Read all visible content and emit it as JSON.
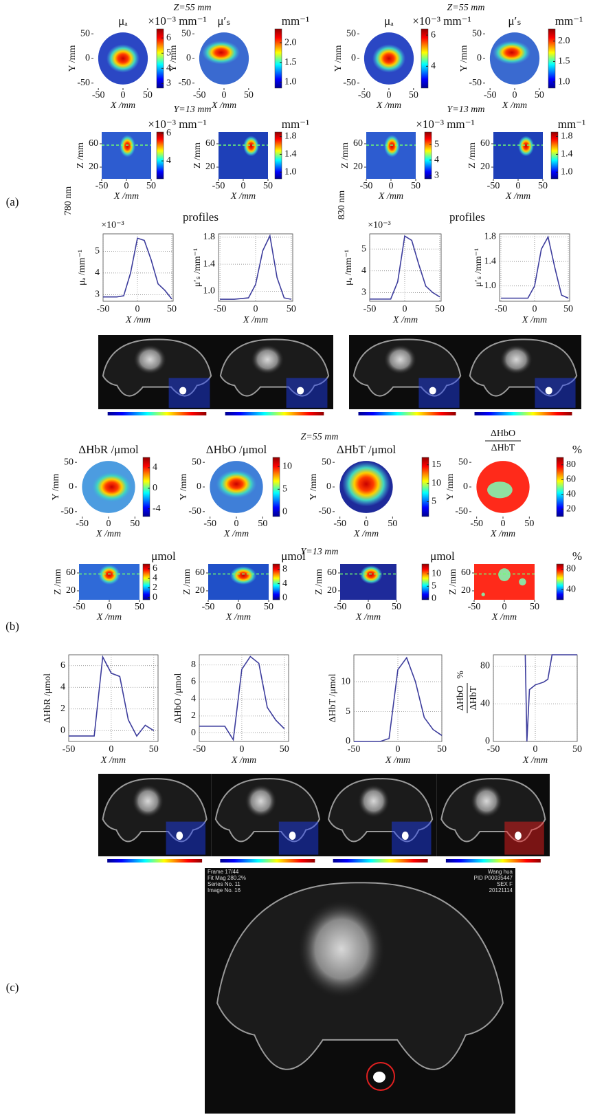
{
  "panel_labels": [
    "(a)",
    "(b)",
    "(c)"
  ],
  "a": {
    "wavelengths": [
      {
        "label": "780 nm",
        "z_title": "Z=55 mm",
        "y_title": "Y=13 mm",
        "profiles_title": "profiles",
        "maps": [
          {
            "title": "μₐ",
            "unit": "×10⁻³ mm⁻¹",
            "xlabel": "X /mm",
            "ylabel": "Y /mm",
            "xlim": [
              -60,
              60
            ],
            "ylim": [
              -60,
              60
            ],
            "xticks": [
              -50,
              0,
              50
            ],
            "yticks": [
              -50,
              0,
              50
            ],
            "clim": [
              2.7,
              6.6
            ],
            "cticks": [
              3,
              4,
              5,
              6
            ]
          },
          {
            "title": "μ′ₛ",
            "unit": "mm⁻¹",
            "xlabel": "X /mm",
            "ylabel": "Y /mm",
            "xlim": [
              -60,
              60
            ],
            "ylim": [
              -60,
              60
            ],
            "xticks": [
              -50,
              0,
              50
            ],
            "yticks": [
              -50,
              0,
              50
            ],
            "clim": [
              0.85,
              2.35
            ],
            "cticks": [
              {
                "value": 1,
                "label": "1.0"
              },
              1.5,
              {
                "value": 2,
                "label": "2.0"
              }
            ]
          },
          {
            "unit": "×10⁻³ mm⁻¹",
            "xlabel": "X /mm",
            "ylabel": "Z /mm",
            "xlim": [
              -50,
              50
            ],
            "ylim": [
              0,
              80
            ],
            "xticks": [
              -50,
              0,
              50
            ],
            "yticks": [
              20,
              60
            ],
            "clim": [
              2.7,
              6.1
            ],
            "cticks": [
              4,
              6
            ]
          },
          {
            "unit": "mm⁻¹",
            "xlabel": "X /mm",
            "ylabel": "Z /mm",
            "xlim": [
              -50,
              50
            ],
            "ylim": [
              0,
              80
            ],
            "xticks": [
              -50,
              0,
              50
            ],
            "yticks": [
              20,
              60
            ],
            "clim": [
              0.85,
              1.9
            ],
            "cticks": [
              {
                "value": 1,
                "label": "1.0"
              },
              1.4,
              1.8
            ]
          }
        ],
        "profiles": [
          {
            "exponent": "×10⁻³",
            "ylabel": "μₐ /mm⁻¹",
            "xlabel": "X /mm",
            "x": [
              -50,
              -40,
              -30,
              -20,
              -10,
              0,
              10,
              20,
              30,
              40,
              50
            ],
            "values": [
              2.9,
              2.9,
              2.9,
              2.95,
              4.0,
              5.6,
              5.5,
              4.6,
              3.5,
              3.2,
              2.8
            ],
            "xlim": [
              -50,
              52
            ],
            "ylim": [
              2.7,
              5.8
            ],
            "xticks": [
              -50,
              0,
              50
            ],
            "yticks": [
              3,
              4,
              5
            ],
            "color": "#3c3c9c",
            "grid": true
          },
          {
            "ylabel": "μ′ₛ /mm⁻¹",
            "xlabel": "X /mm",
            "x": [
              -50,
              -40,
              -30,
              -20,
              -10,
              0,
              10,
              20,
              30,
              40,
              50
            ],
            "values": [
              0.88,
              0.88,
              0.88,
              0.89,
              0.9,
              1.1,
              1.6,
              1.82,
              1.2,
              0.9,
              0.88
            ],
            "xlim": [
              -52,
              52
            ],
            "ylim": [
              0.85,
              1.85
            ],
            "xticks": [
              -50,
              0,
              50
            ],
            "yticks": [
              {
                "value": 1,
                "label": "1.0"
              },
              1.4,
              1.8
            ],
            "color": "#3c3c9c",
            "grid": true
          }
        ]
      },
      {
        "label": "830 nm",
        "z_title": "Z=55 mm",
        "y_title": "Y=13 mm",
        "profiles_title": "profiles",
        "maps": [
          {
            "title": "μₐ",
            "unit": "×10⁻³ mm⁻¹",
            "xlabel": "X /mm",
            "ylabel": "Y /mm",
            "xlim": [
              -60,
              60
            ],
            "ylim": [
              -60,
              60
            ],
            "xticks": [
              -50,
              0,
              50
            ],
            "yticks": [
              -50,
              0,
              50
            ],
            "clim": [
              2.6,
              6.4
            ],
            "cticks": [
              4,
              6
            ]
          },
          {
            "title": "μ′ₛ",
            "unit": "mm⁻¹",
            "xlabel": "X /mm",
            "ylabel": "Y /mm",
            "xlim": [
              -60,
              60
            ],
            "ylim": [
              -60,
              60
            ],
            "xticks": [
              -50,
              0,
              50
            ],
            "yticks": [
              -50,
              0,
              50
            ],
            "clim": [
              0.85,
              2.3
            ],
            "cticks": [
              {
                "value": 1,
                "label": "1.0"
              },
              1.5,
              {
                "value": 2,
                "label": "2.0"
              }
            ]
          },
          {
            "unit": "×10⁻³ mm⁻¹",
            "xlabel": "X /mm",
            "ylabel": "Z /mm",
            "xlim": [
              -50,
              50
            ],
            "ylim": [
              0,
              80
            ],
            "xticks": [
              -50,
              0,
              50
            ],
            "yticks": [
              20,
              60
            ],
            "clim": [
              2.8,
              5.8
            ],
            "cticks": [
              3,
              4,
              5
            ]
          },
          {
            "unit": "mm⁻¹",
            "xlabel": "X /mm",
            "ylabel": "Z /mm",
            "xlim": [
              -50,
              50
            ],
            "ylim": [
              0,
              80
            ],
            "xticks": [
              -50,
              0,
              50
            ],
            "yticks": [
              20,
              60
            ],
            "clim": [
              0.85,
              1.9
            ],
            "cticks": [
              {
                "value": 1,
                "label": "1.0"
              },
              1.4,
              1.8
            ]
          }
        ],
        "profiles": [
          {
            "exponent": "×10⁻³",
            "ylabel": "μₐ /mm⁻¹",
            "xlabel": "X /mm",
            "x": [
              -50,
              -40,
              -30,
              -20,
              -10,
              0,
              10,
              20,
              30,
              40,
              50
            ],
            "values": [
              2.7,
              2.7,
              2.7,
              2.7,
              3.5,
              5.6,
              5.4,
              4.3,
              3.3,
              3.0,
              2.8
            ],
            "xlim": [
              -50,
              52
            ],
            "ylim": [
              2.6,
              5.7
            ],
            "xticks": [
              -50,
              0,
              50
            ],
            "yticks": [
              3,
              4,
              5
            ],
            "color": "#3c3c9c",
            "grid": true
          },
          {
            "ylabel": "μ′ₛ /mm⁻¹",
            "xlabel": "X /mm",
            "x": [
              -50,
              -40,
              -30,
              -20,
              -10,
              0,
              10,
              20,
              30,
              40,
              50
            ],
            "values": [
              0.8,
              0.8,
              0.8,
              0.8,
              0.8,
              1.0,
              1.6,
              1.8,
              1.3,
              0.85,
              0.8
            ],
            "xlim": [
              -52,
              52
            ],
            "ylim": [
              0.75,
              1.85
            ],
            "xticks": [
              -50,
              0,
              50
            ],
            "yticks": [
              {
                "value": 1,
                "label": "1.0"
              },
              1.4,
              1.8
            ],
            "color": "#3c3c9c",
            "grid": true
          }
        ]
      }
    ]
  },
  "b": {
    "z_title": "Z=55 mm",
    "y_title": "Y=13 mm",
    "maps": [
      {
        "title": "ΔHbR /μmol",
        "xlabel": "X /mm",
        "ylabel": "Y /mm",
        "xlim": [
          -60,
          60
        ],
        "ylim": [
          -60,
          60
        ],
        "xticks": [
          -50,
          0,
          50
        ],
        "yticks": [
          -50,
          0,
          50
        ],
        "clim": [
          -5.5,
          6
        ],
        "cticks": [
          -4,
          0,
          4
        ]
      },
      {
        "title": "ΔHbO /μmol",
        "xlabel": "X /mm",
        "ylabel": "Y /mm",
        "xlim": [
          -60,
          60
        ],
        "ylim": [
          -60,
          60
        ],
        "xticks": [
          -50,
          0,
          50
        ],
        "yticks": [
          -50,
          0,
          50
        ],
        "clim": [
          -1,
          12
        ],
        "cticks": [
          0,
          5,
          10
        ]
      },
      {
        "title": "ΔHbT /μmol",
        "xlabel": "X /mm",
        "ylabel": "Y /mm",
        "xlim": [
          -60,
          60
        ],
        "ylim": [
          -60,
          60
        ],
        "xticks": [
          -50,
          0,
          50
        ],
        "yticks": [
          -50,
          0,
          50
        ],
        "clim": [
          1,
          17
        ],
        "cticks": [
          5,
          10,
          15
        ]
      },
      {
        "title_fraction": {
          "numerator": "ΔHbO",
          "denominator": "ΔHbT"
        },
        "unit": "%",
        "xlabel": "X /mm",
        "ylabel": "Y /mm",
        "xlim": [
          -60,
          60
        ],
        "ylim": [
          -60,
          60
        ],
        "xticks": [
          -50,
          0,
          50
        ],
        "yticks": [
          -50,
          0,
          50
        ],
        "clim": [
          10,
          90
        ],
        "cticks": [
          20,
          40,
          60,
          80
        ]
      },
      {
        "unit": "μmol",
        "xlabel": "X /mm",
        "ylabel": "Z /mm",
        "xlim": [
          -50,
          50
        ],
        "ylim": [
          0,
          80
        ],
        "xticks": [
          -50,
          0,
          50
        ],
        "yticks": [
          20,
          60
        ],
        "clim": [
          -0.5,
          7
        ],
        "cticks": [
          0,
          2,
          4,
          6
        ]
      },
      {
        "unit": "μmol",
        "xlabel": "X /mm",
        "ylabel": "Z /mm",
        "xlim": [
          -50,
          50
        ],
        "ylim": [
          0,
          80
        ],
        "xticks": [
          -50,
          0,
          50
        ],
        "yticks": [
          20,
          60
        ],
        "clim": [
          -0.5,
          9.5
        ],
        "cticks": [
          0,
          4,
          8
        ]
      },
      {
        "unit": "μmol",
        "xlabel": "X /mm",
        "ylabel": "Z /mm",
        "xlim": [
          -50,
          50
        ],
        "ylim": [
          0,
          80
        ],
        "xticks": [
          -50,
          0,
          50
        ],
        "yticks": [
          20,
          60
        ],
        "clim": [
          -0.5,
          14
        ],
        "cticks": [
          0,
          5,
          10
        ]
      },
      {
        "unit": "%",
        "xlabel": "X /mm",
        "ylabel": "Z /mm",
        "xlim": [
          -50,
          50
        ],
        "ylim": [
          0,
          80
        ],
        "xticks": [
          -50,
          0,
          50
        ],
        "yticks": [
          20,
          60
        ],
        "clim": [
          20,
          90
        ],
        "cticks": [
          40,
          80
        ]
      }
    ],
    "profiles": [
      {
        "ylabel": "ΔHbR /μmol",
        "xlabel": "X /mm",
        "x": [
          -50,
          -40,
          -30,
          -20,
          -10,
          0,
          10,
          20,
          30,
          40,
          50
        ],
        "values": [
          -0.5,
          -0.5,
          -0.5,
          -0.5,
          6.8,
          5.3,
          5.0,
          1.0,
          -0.5,
          0.5,
          0
        ],
        "xlim": [
          -50,
          55
        ],
        "ylim": [
          -1,
          7
        ],
        "xticks": [
          -50,
          0,
          50
        ],
        "yticks": [
          0,
          2,
          4,
          6
        ],
        "color": "#3c3c9c",
        "grid": true
      },
      {
        "ylabel": "ΔHbO /μmol",
        "xlabel": "X /mm",
        "x": [
          -50,
          -40,
          -30,
          -20,
          -10,
          0,
          10,
          20,
          30,
          40,
          50
        ],
        "values": [
          0.8,
          0.8,
          0.8,
          0.8,
          -0.8,
          7.5,
          9.0,
          8.2,
          3,
          1.5,
          0.5
        ],
        "xlim": [
          -50,
          55
        ],
        "ylim": [
          -1,
          9.2
        ],
        "xticks": [
          -50,
          0,
          50
        ],
        "yticks": [
          0,
          2,
          4,
          6,
          8
        ],
        "color": "#3c3c9c",
        "grid": true
      },
      {
        "ylabel": "ΔHbT /μmol",
        "xlabel": "X /mm",
        "x": [
          -50,
          -40,
          -30,
          -20,
          -10,
          0,
          10,
          20,
          30,
          40,
          50
        ],
        "values": [
          0,
          0,
          0,
          0,
          0.5,
          12,
          14,
          10,
          4,
          2,
          1
        ],
        "xlim": [
          -50,
          50
        ],
        "ylim": [
          0,
          14.5
        ],
        "xticks": [
          -50,
          0,
          50
        ],
        "yticks": [
          0,
          5,
          10
        ],
        "color": "#3c3c9c",
        "grid": true
      },
      {
        "ylabel_fraction": {
          "numerator": "ΔHbO",
          "denominator": "ΔHbT"
        },
        "ylabel_unit": "%",
        "xlabel": "X /mm",
        "x": [
          -12,
          -10,
          -7,
          0,
          10,
          15,
          20,
          50
        ],
        "values": [
          92,
          0,
          55,
          60,
          63,
          66,
          92,
          92
        ],
        "xlim": [
          -50,
          50
        ],
        "ylim": [
          0,
          92
        ],
        "xticks": [
          -50,
          0,
          50
        ],
        "yticks": [
          0,
          40,
          80
        ],
        "color": "#3c3c9c",
        "grid": true
      }
    ]
  },
  "c": {
    "info_left": [
      "Frame 17/44",
      "Fit Mag 280.2%",
      "Series No. 11",
      "Image No. 16"
    ],
    "info_right": [
      "Wang hua",
      "PID P00035447",
      "SEX F",
      "20121114"
    ]
  }
}
